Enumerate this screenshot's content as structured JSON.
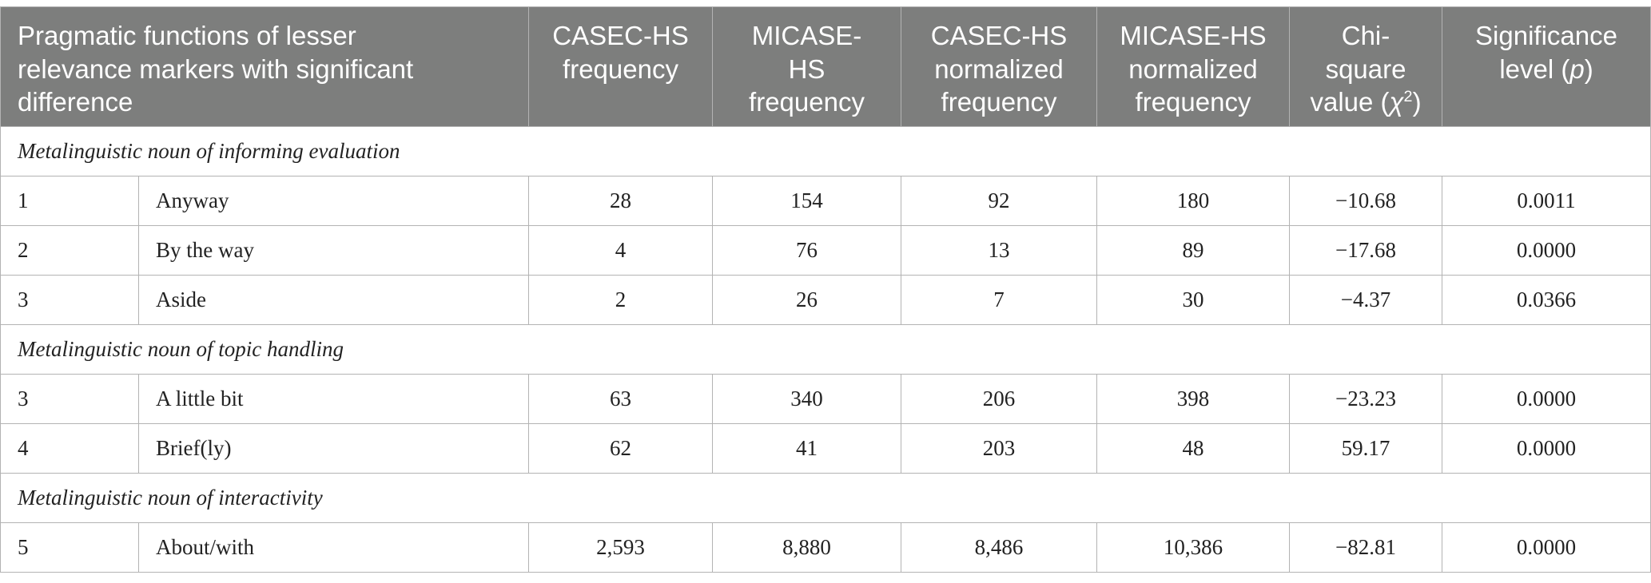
{
  "table": {
    "header": {
      "function": "Pragmatic functions of lesser\nrelevance markers with significant\ndifference",
      "casec_frequency": "CASEC-HS\nfrequency",
      "micase_frequency": "MICASE-\nHS\nfrequency",
      "casec_normalized": "CASEC-HS\nnormalized\nfrequency",
      "micase_normalized": "MICASE-HS\nnormalized\nfrequency",
      "chi_square": {
        "text": "Chi-\nsquare\nvalue (",
        "symbol": "χ",
        "sup": "2",
        "close": ")"
      },
      "significance": {
        "text": "Significance\nlevel (",
        "symbol": "p",
        "close": ")"
      }
    },
    "sections": [
      {
        "title": "Metalinguistic noun of informing evaluation",
        "rows": [
          [
            "1",
            "Anyway",
            "28",
            "154",
            "92",
            "180",
            "−10.68",
            "0.0011"
          ],
          [
            "2",
            "By the way",
            "4",
            "76",
            "13",
            "89",
            "−17.68",
            "0.0000"
          ],
          [
            "3",
            "Aside",
            "2",
            "26",
            "7",
            "30",
            "−4.37",
            "0.0366"
          ]
        ]
      },
      {
        "title": "Metalinguistic noun of topic handling",
        "rows": [
          [
            "3",
            "A little bit",
            "63",
            "340",
            "206",
            "398",
            "−23.23",
            "0.0000"
          ],
          [
            "4",
            "Brief(ly)",
            "62",
            "41",
            "203",
            "48",
            "59.17",
            "0.0000"
          ]
        ]
      },
      {
        "title": "Metalinguistic noun of interactivity",
        "rows": [
          [
            "5",
            "About/with",
            "2,593",
            "8,880",
            "8,486",
            "10,386",
            "−82.81",
            "0.0000"
          ]
        ]
      }
    ]
  },
  "colors": {
    "header_background": "#7d7e7d",
    "header_text": "#ffffff",
    "grid_line": "#b3b3b3"
  }
}
